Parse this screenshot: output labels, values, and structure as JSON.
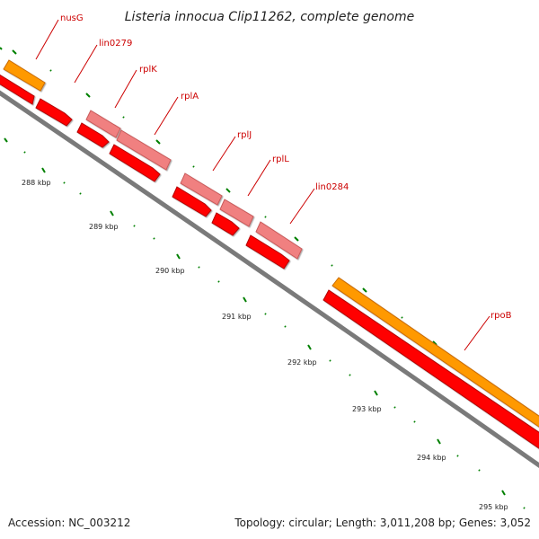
{
  "title": "Listeria innocua Clip11262, complete genome",
  "footer": {
    "accession": "Accession: NC_003212",
    "summary": "Topology: circular; Length: 3,011,208 bp; Genes: 3,052"
  },
  "colors": {
    "backbone": "#808080",
    "cds": "#ff0000",
    "rrna": "#f08080",
    "orange_feature": "#ff9900",
    "label": "#cc0000",
    "tick": "#008000"
  },
  "gene_labels": [
    "nusG",
    "lin0279",
    "rplK",
    "rplA",
    "rplJ",
    "rplL",
    "lin0284",
    "rpoB"
  ],
  "tick_labels": [
    "288 kbp",
    "289 kbp",
    "290 kbp",
    "291 kbp",
    "292 kbp",
    "293 kbp",
    "294 kbp",
    "295 kbp"
  ]
}
